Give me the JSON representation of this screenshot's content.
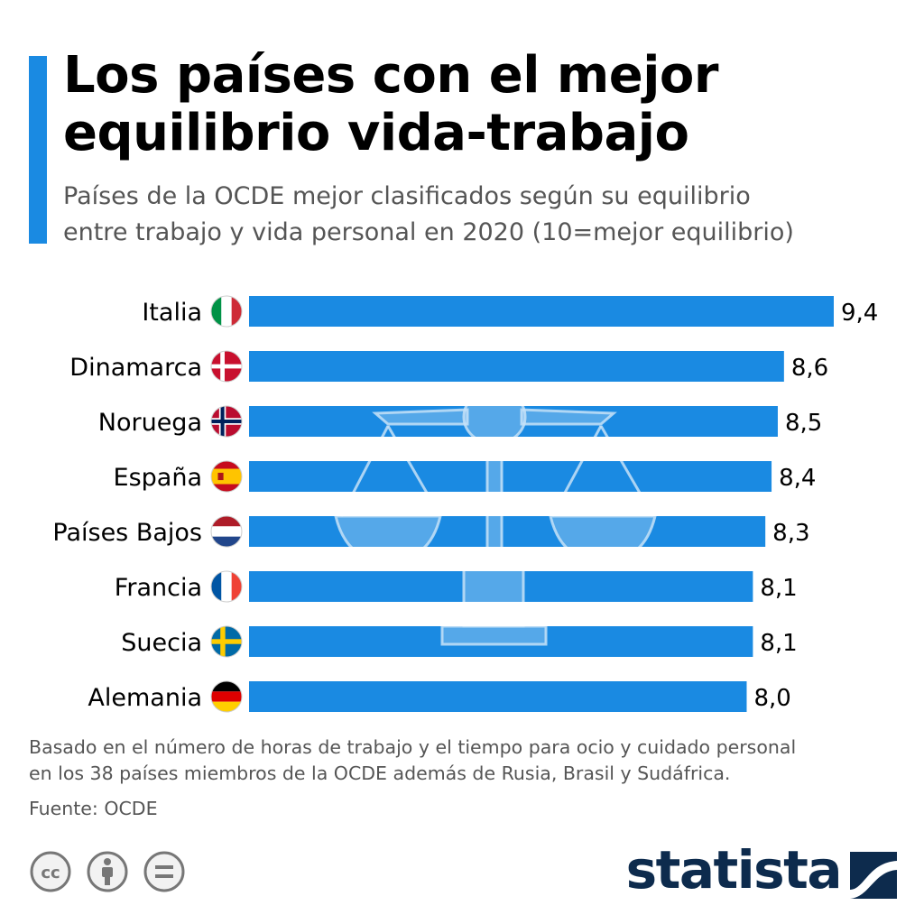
{
  "header": {
    "title_line1": "Los países con el mejor",
    "title_line2": "equilibrio vida-trabajo",
    "subtitle_line1": "Países de la OCDE mejor clasificados según su equilibrio",
    "subtitle_line2": "entre trabajo y vida personal en 2020 (10=mejor equilibrio)"
  },
  "colors": {
    "accent": "#1a8ae2",
    "bar": "#1a8ae2",
    "text": "#000000",
    "muted": "#555555",
    "brand": "#0d2b4d"
  },
  "chart_data": {
    "type": "bar",
    "orientation": "horizontal",
    "title": "Los países con el mejor equilibrio vida-trabajo",
    "ylabel": "",
    "xlabel": "",
    "xlim": [
      0,
      9.4
    ],
    "categories": [
      "Italia",
      "Dinamarca",
      "Noruega",
      "España",
      "Países Bajos",
      "Francia",
      "Suecia",
      "Alemania"
    ],
    "flags": [
      "flag-italy-icon",
      "flag-denmark-icon",
      "flag-norway-icon",
      "flag-spain-icon",
      "flag-netherlands-icon",
      "flag-france-icon",
      "flag-sweden-icon",
      "flag-germany-icon"
    ],
    "values": [
      9.4,
      8.6,
      8.5,
      8.4,
      8.3,
      8.1,
      8.1,
      8.0
    ],
    "value_labels": [
      "9,4",
      "8,6",
      "8,5",
      "8,4",
      "8,3",
      "8,1",
      "8,1",
      "8,0"
    ],
    "background_illustration": "balance-scale-icon"
  },
  "footer": {
    "note_line1": "Basado en el número de horas de trabajo y el tiempo para ocio y cuidado personal",
    "note_line2": "en los 38 países miembros de la OCDE además de Rusia, Brasil y Sudáfrica.",
    "source": "Fuente: OCDE",
    "license_icons": [
      "cc-icon",
      "attribution-icon",
      "no-derivatives-icon"
    ],
    "brand": "statista"
  }
}
